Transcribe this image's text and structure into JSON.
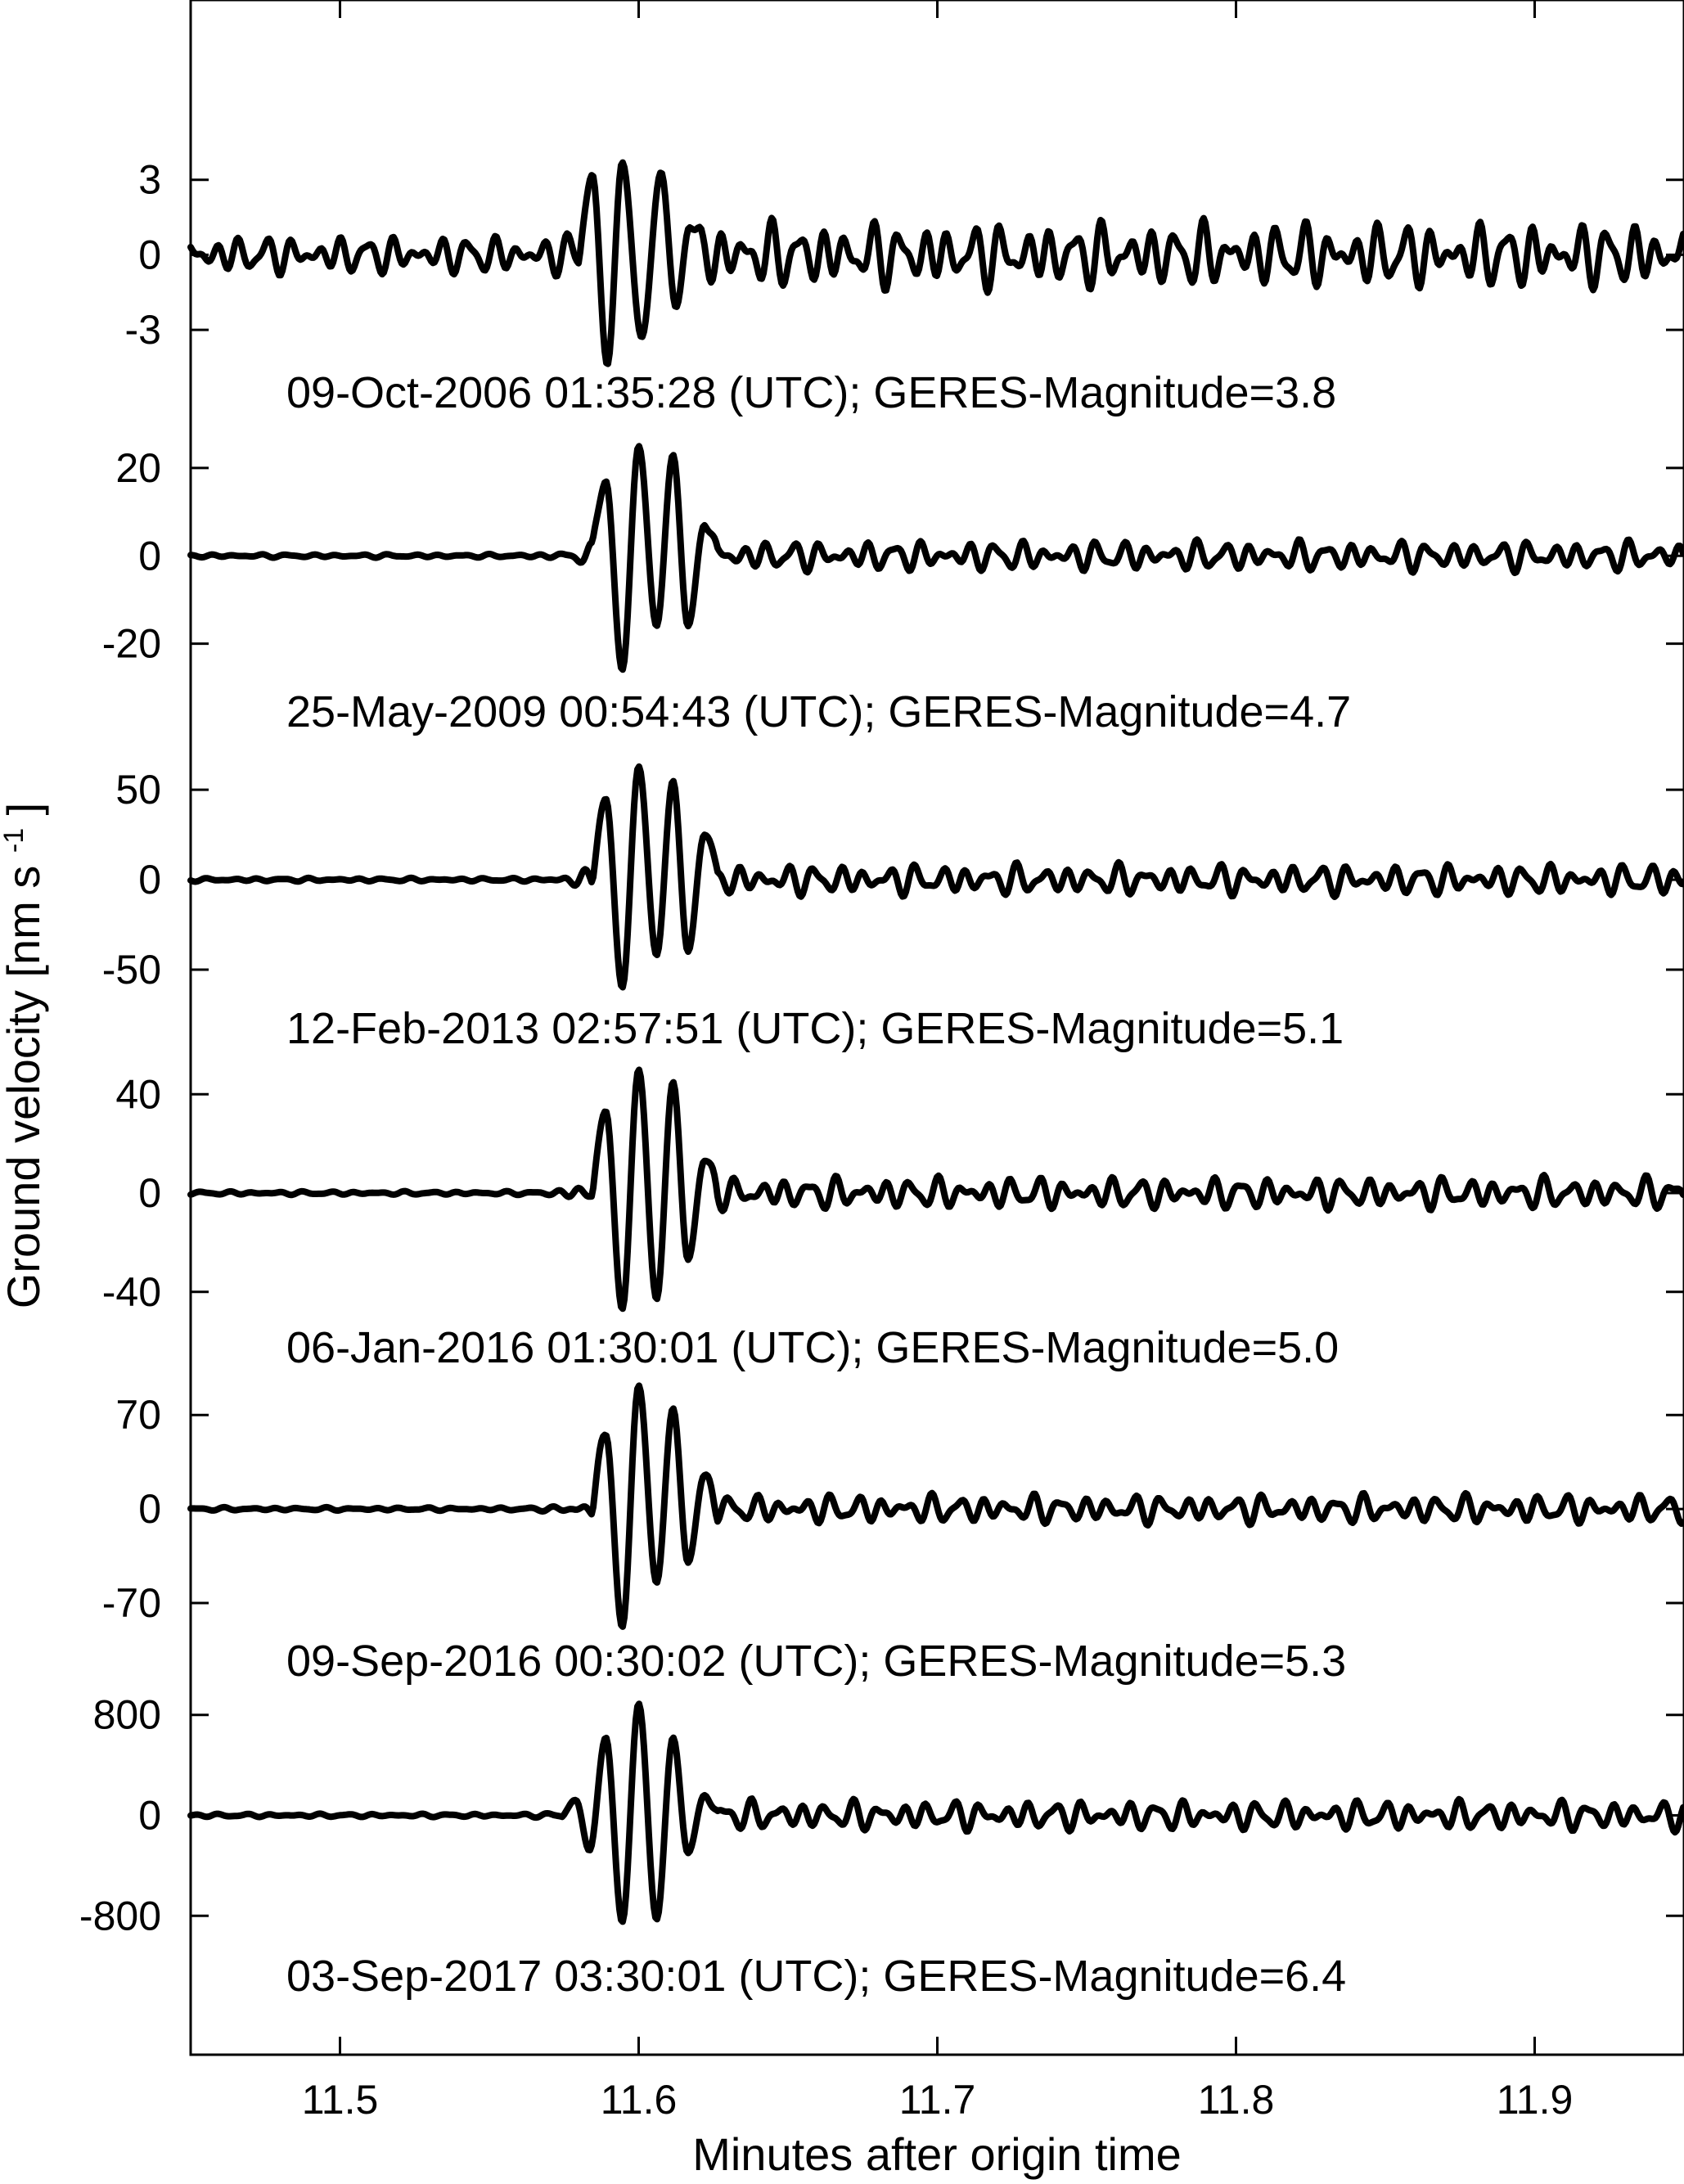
{
  "chart_data": {
    "type": "line",
    "xlabel": "Minutes after origin time",
    "ylabel": "Ground velocity [nm s",
    "ylabel_sup": "-1",
    "ylabel_close": "]",
    "xlim": [
      11.45,
      11.95
    ],
    "xticks": [
      11.5,
      11.6,
      11.7,
      11.8,
      11.9
    ],
    "xtick_labels": [
      "11.5",
      "11.6",
      "11.7",
      "11.8",
      "11.9"
    ],
    "line_color": "#000000",
    "panels": [
      {
        "label": "09-Oct-2006 01:35:28  (UTC); GERES-Magnitude=3.8",
        "yticks": [
          3,
          0,
          -3
        ],
        "ytick_labels": [
          "3",
          "0",
          "-3"
        ],
        "ylim": [
          -4.6,
          4.3
        ],
        "noise_amp": 1.1,
        "peaks": [
          {
            "t": 11.5845,
            "v": 3.2
          },
          {
            "t": 11.5895,
            "v": -4.4
          },
          {
            "t": 11.5945,
            "v": 3.7
          },
          {
            "t": 11.601,
            "v": -3.3
          },
          {
            "t": 11.6075,
            "v": 3.3
          },
          {
            "t": 11.6125,
            "v": -2.1
          },
          {
            "t": 11.617,
            "v": 1.1
          }
        ]
      },
      {
        "label": "25-May-2009 00:54:43  (UTC); GERES-Magnitude=4.7",
        "yticks": [
          20,
          0,
          -20
        ],
        "ytick_labels": [
          "20",
          "0",
          "-20"
        ],
        "ylim": [
          -29,
          25
        ],
        "noise_amp": 3.2,
        "peaks": [
          {
            "t": 11.589,
            "v": 17
          },
          {
            "t": 11.5945,
            "v": -26
          },
          {
            "t": 11.6,
            "v": 25
          },
          {
            "t": 11.606,
            "v": -16
          },
          {
            "t": 11.6115,
            "v": 23
          },
          {
            "t": 11.6165,
            "v": -16
          },
          {
            "t": 11.622,
            "v": 7
          }
        ]
      },
      {
        "label": "12-Feb-2013 02:57:51  (UTC); GERES-Magnitude=5.1",
        "yticks": [
          50,
          0,
          -50
        ],
        "ytick_labels": [
          "50",
          "0",
          "-50"
        ],
        "ylim": [
          -65,
          66
        ],
        "noise_amp": 8,
        "peaks": [
          {
            "t": 11.589,
            "v": 45
          },
          {
            "t": 11.5945,
            "v": -60
          },
          {
            "t": 11.6,
            "v": 63
          },
          {
            "t": 11.606,
            "v": -42
          },
          {
            "t": 11.6115,
            "v": 55
          },
          {
            "t": 11.6165,
            "v": -40
          },
          {
            "t": 11.622,
            "v": 25
          }
        ]
      },
      {
        "label": "06-Jan-2016 01:30:01  (UTC); GERES-Magnitude=5.0",
        "yticks": [
          40,
          0,
          -40
        ],
        "ytick_labels": [
          "40",
          "0",
          "-40"
        ],
        "ylim": [
          -51,
          53
        ],
        "noise_amp": 6,
        "peaks": [
          {
            "t": 11.589,
            "v": 33
          },
          {
            "t": 11.5945,
            "v": -47
          },
          {
            "t": 11.6,
            "v": 50
          },
          {
            "t": 11.606,
            "v": -43
          },
          {
            "t": 11.6115,
            "v": 45
          },
          {
            "t": 11.6165,
            "v": -27
          },
          {
            "t": 11.622,
            "v": 13
          }
        ]
      },
      {
        "label": "09-Sep-2016 00:30:02  (UTC); GERES-Magnitude=5.3",
        "yticks": [
          70,
          0,
          -70
        ],
        "ytick_labels": [
          "70",
          "0",
          "-70"
        ],
        "ylim": [
          -95,
          100
        ],
        "noise_amp": 10,
        "peaks": [
          {
            "t": 11.589,
            "v": 55
          },
          {
            "t": 11.5945,
            "v": -88
          },
          {
            "t": 11.6,
            "v": 92
          },
          {
            "t": 11.606,
            "v": -55
          },
          {
            "t": 11.6115,
            "v": 75
          },
          {
            "t": 11.6165,
            "v": -40
          },
          {
            "t": 11.622,
            "v": 25
          }
        ]
      },
      {
        "label": "03-Sep-2017 03:30:01  (UTC); GERES-Magnitude=6.4",
        "yticks": [
          800,
          0,
          -800
        ],
        "ytick_labels": [
          "800",
          "0",
          "-800"
        ],
        "ylim": [
          -1000,
          1000
        ],
        "noise_amp": 110,
        "peaks": [
          {
            "t": 11.579,
            "v": 120
          },
          {
            "t": 11.5835,
            "v": -280
          },
          {
            "t": 11.589,
            "v": 620
          },
          {
            "t": 11.5945,
            "v": -850
          },
          {
            "t": 11.6,
            "v": 890
          },
          {
            "t": 11.606,
            "v": -830
          },
          {
            "t": 11.6115,
            "v": 620
          },
          {
            "t": 11.6165,
            "v": -300
          },
          {
            "t": 11.622,
            "v": 160
          }
        ]
      }
    ]
  }
}
